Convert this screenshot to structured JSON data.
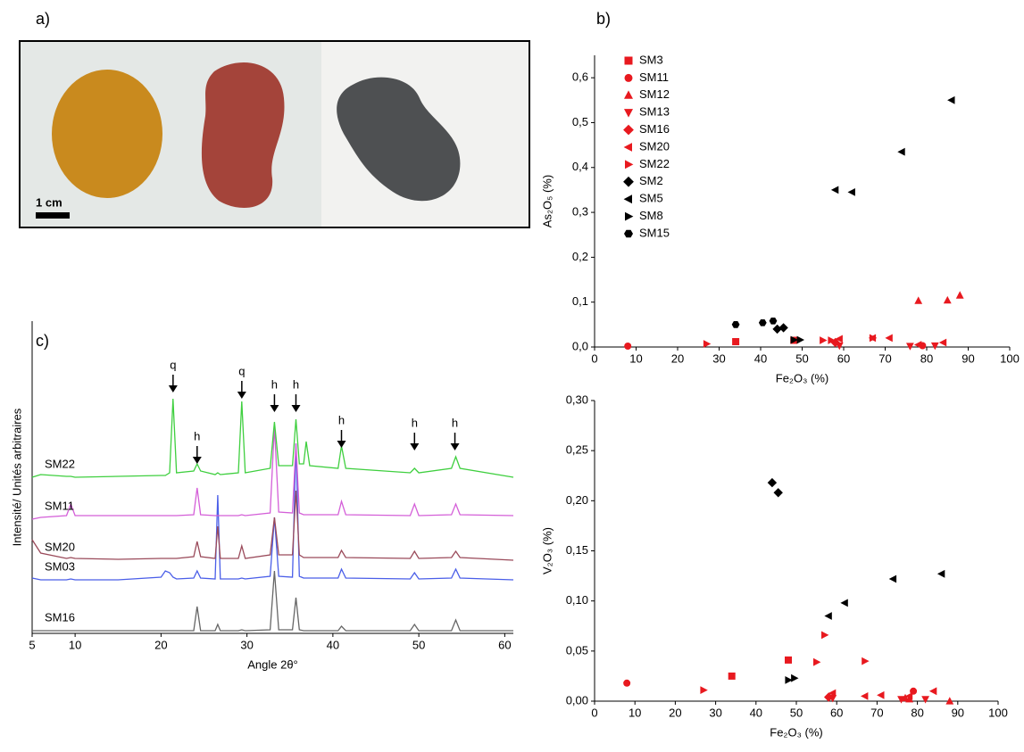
{
  "panel_labels": [
    "a)",
    "b)",
    "c)"
  ],
  "photo": {
    "scale_label": "1 cm"
  },
  "chart_data": [
    {
      "type": "scatter",
      "x_label": "Fe₂O₃ (%)",
      "y_label": "As₂O₅ (%)",
      "xlim": [
        0,
        100
      ],
      "xticks": [
        0,
        10,
        20,
        30,
        40,
        50,
        60,
        70,
        80,
        90,
        100
      ],
      "ylim": [
        0,
        0.65
      ],
      "yticks": [
        {
          "value": 0,
          "label": "0,0"
        },
        {
          "value": 0.1,
          "label": "0,1"
        },
        {
          "value": 0.2,
          "label": "0,2"
        },
        {
          "value": 0.3,
          "label": "0,3"
        },
        {
          "value": 0.4,
          "label": "0,4"
        },
        {
          "value": 0.5,
          "label": "0,5"
        },
        {
          "value": 0.6,
          "label": "0,6"
        }
      ],
      "legend": "upper left",
      "series": [
        {
          "name": "SM3",
          "color": "#e8191f",
          "marker": "square",
          "x": [
            34,
            48
          ],
          "values": [
            0.012,
            0.015
          ]
        },
        {
          "name": "SM11",
          "color": "#e8191f",
          "marker": "circle",
          "x": [
            8,
            79
          ],
          "values": [
            0.002,
            0.003
          ]
        },
        {
          "name": "SM12",
          "color": "#e8191f",
          "marker": "triangle-up",
          "x": [
            78,
            85,
            88
          ],
          "values": [
            0.103,
            0.104,
            0.115
          ]
        },
        {
          "name": "SM13",
          "color": "#e8191f",
          "marker": "triangle-down",
          "x": [
            59,
            76,
            82
          ],
          "values": [
            0.003,
            0.002,
            0.003
          ]
        },
        {
          "name": "SM16",
          "color": "#e8191f",
          "marker": "diamond",
          "x": [
            58
          ],
          "values": [
            0.01
          ]
        },
        {
          "name": "SM20",
          "color": "#e8191f",
          "marker": "triangle-left",
          "x": [
            59,
            67,
            71,
            78,
            84
          ],
          "values": [
            0.018,
            0.02,
            0.02,
            0.005,
            0.01
          ]
        },
        {
          "name": "SM22",
          "color": "#e8191f",
          "marker": "triangle-right",
          "x": [
            27,
            55,
            57,
            67
          ],
          "values": [
            0.007,
            0.015,
            0.015,
            0.02
          ]
        },
        {
          "name": "SM2",
          "color": "#000000",
          "marker": "diamond",
          "x": [
            44,
            45.5
          ],
          "values": [
            0.04,
            0.043
          ]
        },
        {
          "name": "SM5",
          "color": "#000000",
          "marker": "triangle-left",
          "x": [
            58,
            62,
            74,
            86
          ],
          "values": [
            0.35,
            0.345,
            0.435,
            0.55
          ]
        },
        {
          "name": "SM8",
          "color": "#000000",
          "marker": "triangle-right",
          "x": [
            48,
            49.5
          ],
          "values": [
            0.016,
            0.016
          ]
        },
        {
          "name": "SM15",
          "color": "#000000",
          "marker": "hexagon",
          "x": [
            34,
            40.5,
            43
          ],
          "values": [
            0.05,
            0.054,
            0.058
          ]
        }
      ]
    },
    {
      "type": "scatter",
      "x_label": "Fe₂O₃ (%)",
      "y_label": "V₂O₃ (%)",
      "xlim": [
        0,
        100
      ],
      "xticks": [
        0,
        10,
        20,
        30,
        40,
        50,
        60,
        70,
        80,
        90,
        100
      ],
      "ylim": [
        0,
        0.3
      ],
      "yticks": [
        {
          "value": 0,
          "label": "0,00"
        },
        {
          "value": 0.05,
          "label": "0,05"
        },
        {
          "value": 0.1,
          "label": "0,10"
        },
        {
          "value": 0.15,
          "label": "0,15"
        },
        {
          "value": 0.2,
          "label": "0,20"
        },
        {
          "value": 0.25,
          "label": "0,25"
        },
        {
          "value": 0.3,
          "label": "0,30"
        }
      ],
      "series": [
        {
          "color": "#e8191f",
          "marker": "square",
          "x": [
            34,
            48
          ],
          "values": [
            0.025,
            0.041
          ]
        },
        {
          "color": "#e8191f",
          "marker": "circle",
          "x": [
            8,
            79
          ],
          "values": [
            0.018,
            0.01
          ]
        },
        {
          "color": "#e8191f",
          "marker": "triangle-up",
          "x": [
            77,
            78,
            88
          ],
          "values": [
            0.003,
            0.002,
            0.0
          ]
        },
        {
          "color": "#e8191f",
          "marker": "triangle-down",
          "x": [
            59,
            76,
            82
          ],
          "values": [
            0.003,
            0.002,
            0.002
          ]
        },
        {
          "color": "#e8191f",
          "marker": "diamond",
          "x": [
            58
          ],
          "values": [
            0.004
          ]
        },
        {
          "color": "#e8191f",
          "marker": "triangle-left",
          "x": [
            59,
            67,
            71,
            78,
            84
          ],
          "values": [
            0.008,
            0.005,
            0.006,
            0.005,
            0.01
          ]
        },
        {
          "color": "#e8191f",
          "marker": "triangle-right",
          "x": [
            27,
            55,
            57,
            67
          ],
          "values": [
            0.011,
            0.039,
            0.066,
            0.04
          ]
        },
        {
          "color": "#000000",
          "marker": "diamond",
          "x": [
            44,
            45.5
          ],
          "values": [
            0.218,
            0.208
          ]
        },
        {
          "color": "#000000",
          "marker": "triangle-left",
          "x": [
            58,
            62,
            74,
            86
          ],
          "values": [
            0.085,
            0.098,
            0.122,
            0.127
          ]
        },
        {
          "color": "#000000",
          "marker": "triangle-right",
          "x": [
            48,
            49.5
          ],
          "values": [
            0.021,
            0.023
          ]
        }
      ]
    },
    {
      "type": "line",
      "x_label": "Angle 2θ°",
      "y_label": "Intensité/ Unités arbitraires",
      "xlim": [
        5,
        61
      ],
      "xticks": [
        5,
        10,
        20,
        30,
        40,
        50,
        60
      ],
      "ylim": [
        0,
        350
      ],
      "x": [
        5,
        6,
        9,
        9.5,
        10,
        15,
        20,
        20.5,
        21,
        21.4,
        21.8,
        23.8,
        24.2,
        24.6,
        26.3,
        26.6,
        26.9,
        29,
        29.4,
        29.8,
        32.7,
        33.2,
        33.7,
        35.3,
        35.7,
        36.1,
        36.6,
        36.9,
        37.3,
        40.6,
        41,
        41.5,
        49,
        49.5,
        50,
        53.8,
        54.3,
        54.8,
        61
      ],
      "series": [
        {
          "name": "SM22",
          "color": "#3fcf3f",
          "values": [
            175,
            178,
            176,
            176,
            175,
            176,
            177,
            177,
            180,
            263,
            180,
            182,
            190,
            182,
            178,
            180,
            178,
            180,
            260,
            180,
            185,
            237,
            188,
            188,
            240,
            190,
            190,
            215,
            188,
            185,
            210,
            185,
            180,
            185,
            180,
            185,
            198,
            185,
            175
          ]
        },
        {
          "name": "SM11",
          "color": "#d45fd8",
          "values": [
            128,
            130,
            132,
            145,
            132,
            132,
            132,
            132,
            132,
            132,
            132,
            133,
            163,
            133,
            132,
            132,
            132,
            132,
            133,
            132,
            135,
            232,
            136,
            135,
            213,
            135,
            133,
            133,
            133,
            133,
            148,
            133,
            132,
            145,
            132,
            133,
            145,
            133,
            132
          ]
        },
        {
          "name": "SM20",
          "color": "#9a4a5a",
          "values": [
            105,
            90,
            84,
            85,
            84,
            83,
            84,
            84,
            84,
            84,
            84,
            86,
            103,
            86,
            84,
            120,
            84,
            84,
            98,
            84,
            88,
            130,
            88,
            88,
            160,
            88,
            85,
            85,
            85,
            85,
            93,
            85,
            84,
            92,
            84,
            85,
            92,
            85,
            82
          ]
        },
        {
          "name": "SM03",
          "color": "#4a5ee8",
          "values": [
            62,
            60,
            60,
            61,
            60,
            60,
            63,
            70,
            68,
            63,
            61,
            62,
            70,
            62,
            61,
            155,
            61,
            61,
            62,
            61,
            64,
            130,
            64,
            63,
            213,
            64,
            62,
            62,
            62,
            62,
            72,
            62,
            61,
            68,
            61,
            62,
            72,
            62,
            60
          ]
        },
        {
          "name": "SM16",
          "color": "#666666",
          "values": [
            3,
            3,
            3,
            3,
            3,
            3,
            3,
            3,
            3,
            3,
            3,
            3,
            30,
            3,
            3,
            10,
            3,
            3,
            4,
            3,
            4,
            70,
            4,
            4,
            40,
            4,
            3,
            3,
            3,
            3,
            8,
            3,
            3,
            10,
            3,
            3,
            15,
            3,
            3
          ]
        }
      ],
      "annotations": [
        {
          "label": "q",
          "x": 21.4,
          "y": 270
        },
        {
          "label": "h",
          "x": 24.2,
          "y": 190
        },
        {
          "label": "q",
          "x": 29.4,
          "y": 263
        },
        {
          "label": "h",
          "x": 33.2,
          "y": 248
        },
        {
          "label": "h",
          "x": 35.7,
          "y": 248
        },
        {
          "label": "h",
          "x": 41,
          "y": 208
        },
        {
          "label": "h",
          "x": 49.5,
          "y": 205
        },
        {
          "label": "h",
          "x": 54.2,
          "y": 205
        }
      ]
    }
  ]
}
